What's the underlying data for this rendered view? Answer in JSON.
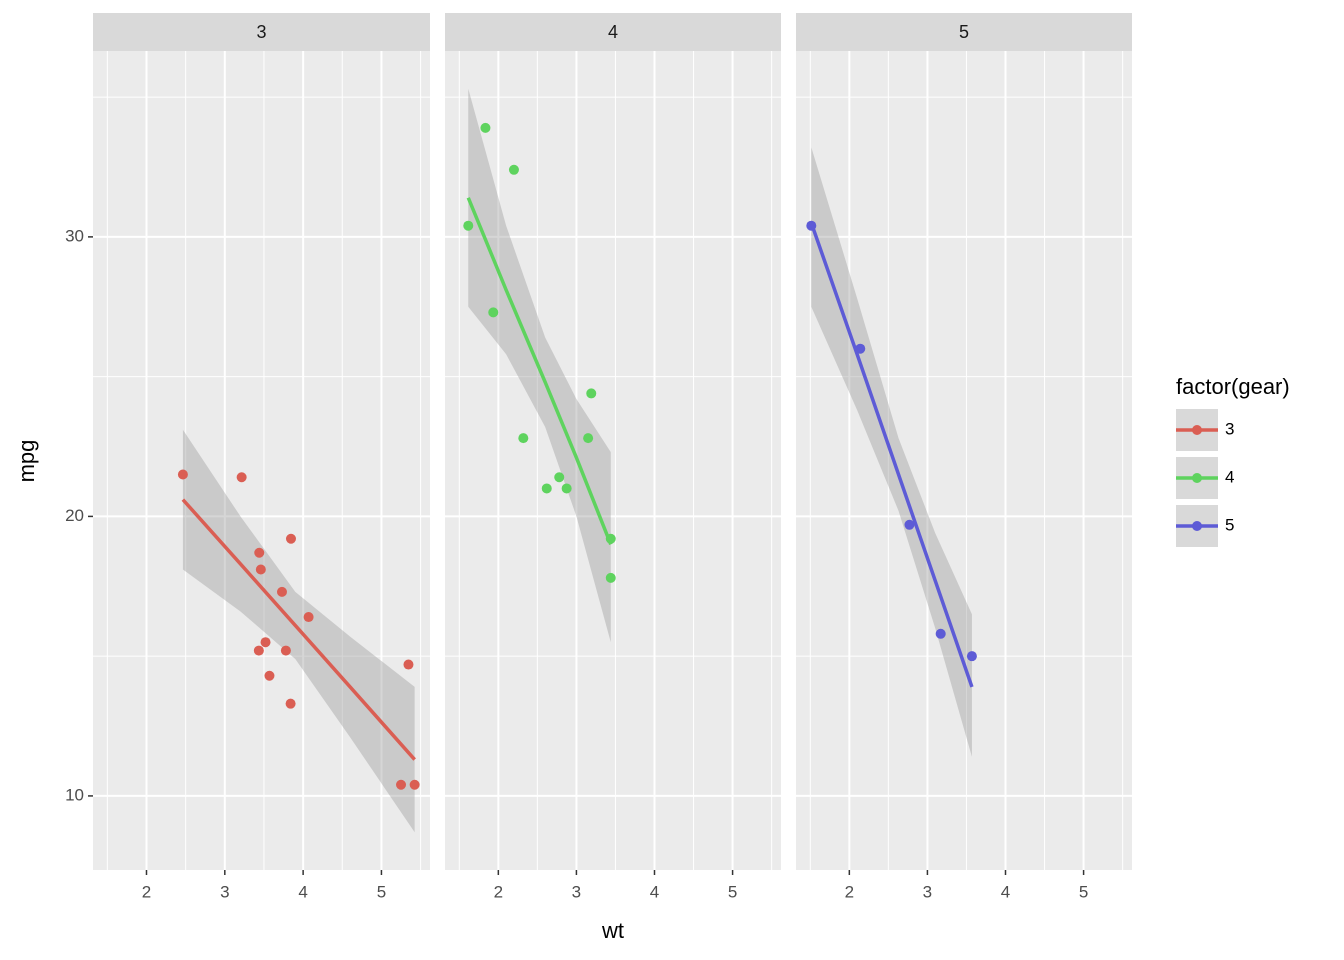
{
  "chart_data": {
    "type": "scatter",
    "xlabel": "wt",
    "ylabel": "mpg",
    "legend_title": "factor(gear)",
    "xlim": [
      1.317,
      5.62
    ],
    "ylim": [
      7.35,
      36.65
    ],
    "xticks": [
      2,
      3,
      4,
      5
    ],
    "yticks": [
      10,
      20,
      30
    ],
    "x_minor_grid": [
      1.5,
      2.5,
      3.5,
      4.5,
      5.5
    ],
    "y_minor_grid": [
      15,
      25,
      35
    ],
    "series": [
      {
        "name": "3",
        "color": "#da5e53",
        "x": [
          3.215,
          3.44,
          3.46,
          3.57,
          4.07,
          3.73,
          3.78,
          5.25,
          5.424,
          5.345,
          2.465,
          3.52,
          3.435,
          3.84,
          3.845
        ],
        "values": [
          21.4,
          18.7,
          18.1,
          14.3,
          16.4,
          17.3,
          15.2,
          10.4,
          10.4,
          14.7,
          21.5,
          15.5,
          15.2,
          13.3,
          19.2
        ],
        "smooth": {
          "x": [
            2.465,
            3.2,
            3.9,
            4.6,
            5.424
          ],
          "y": [
            20.6,
            18.3,
            16.1,
            13.9,
            11.3
          ],
          "ymin": [
            18.1,
            16.6,
            14.9,
            12.1,
            8.7
          ],
          "ymax": [
            23.1,
            20.0,
            17.3,
            15.7,
            13.9
          ]
        }
      },
      {
        "name": "4",
        "color": "#5ed35e",
        "x": [
          2.62,
          2.875,
          2.32,
          3.19,
          3.15,
          3.44,
          3.44,
          2.2,
          1.615,
          1.835,
          1.935,
          2.78
        ],
        "values": [
          21,
          21,
          22.8,
          24.4,
          22.8,
          19.2,
          17.8,
          32.4,
          30.4,
          33.9,
          27.3,
          21.4
        ],
        "smooth": {
          "x": [
            1.615,
            2.1,
            2.6,
            3.0,
            3.44
          ],
          "y": [
            31.4,
            28.1,
            24.8,
            22.1,
            19.0
          ],
          "ymin": [
            27.5,
            25.8,
            23.2,
            20.0,
            15.5
          ],
          "ymax": [
            35.3,
            30.4,
            26.4,
            24.2,
            22.3
          ]
        }
      },
      {
        "name": "5",
        "color": "#5d5bd6",
        "x": [
          2.14,
          1.513,
          3.17,
          2.77,
          3.57
        ],
        "values": [
          26,
          30.4,
          15.8,
          19.7,
          15
        ],
        "smooth": {
          "x": [
            1.513,
            2.1,
            2.63,
            3.1,
            3.57
          ],
          "y": [
            30.5,
            25.8,
            21.5,
            17.7,
            13.9
          ],
          "ymin": [
            27.5,
            23.8,
            20.2,
            16.0,
            11.4
          ],
          "ymax": [
            33.2,
            27.8,
            22.8,
            19.4,
            16.5
          ]
        }
      }
    ]
  }
}
